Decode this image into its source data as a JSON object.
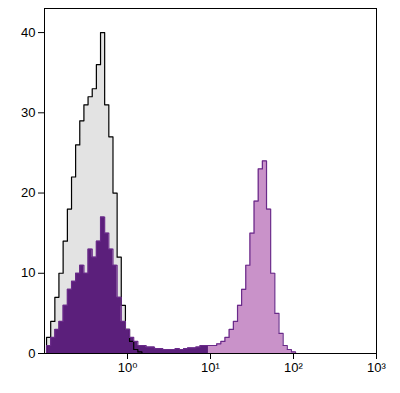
{
  "chart_data": {
    "type": "area",
    "x": [
      0.1,
      0.112,
      0.126,
      0.141,
      0.158,
      0.178,
      0.2,
      0.224,
      0.251,
      0.282,
      0.316,
      0.355,
      0.398,
      0.447,
      0.501,
      0.562,
      0.631,
      0.708,
      0.794,
      0.891,
      1,
      1.12,
      1.26,
      1.41,
      1.58,
      1.78,
      2,
      2.24,
      2.51,
      2.82,
      3.16,
      3.55,
      3.98,
      4.47,
      5.01,
      5.62,
      6.31,
      7.08,
      7.94,
      8.91,
      10,
      11.2,
      12.6,
      14.1,
      15.8,
      17.8,
      20,
      22.4,
      25.1,
      28.2,
      31.6,
      35.5,
      39.8,
      44.7,
      50.1,
      56.2,
      63.1,
      70.8,
      79.4,
      89.1,
      100,
      112,
      126,
      141,
      158
    ],
    "series": [
      {
        "color": "#e3e3e3",
        "values": [
          0,
          2,
          4,
          7,
          10,
          14,
          18,
          22,
          26,
          29,
          31,
          32,
          33,
          36,
          40,
          31,
          27,
          20,
          12,
          6,
          3,
          1.5,
          0.5,
          0.2,
          0,
          0,
          0,
          0,
          0,
          0,
          0,
          0,
          0,
          0,
          0,
          0,
          0,
          0,
          0,
          0,
          0,
          0,
          0,
          0,
          0,
          0,
          0,
          0,
          0,
          0,
          0,
          0,
          0,
          0,
          0,
          0,
          0,
          0,
          0,
          0,
          0,
          0,
          0,
          0,
          0
        ]
      },
      {
        "color": "#5b1f7b",
        "values": [
          0,
          1,
          2,
          3,
          4,
          6,
          8,
          9,
          10,
          11,
          10,
          13,
          12,
          14,
          17,
          15,
          13,
          11,
          7,
          4,
          3,
          2,
          1.5,
          1,
          1,
          0.8,
          0.8,
          0.6,
          0.6,
          0.5,
          0.5,
          0.5,
          0.6,
          0.5,
          0.6,
          0.7,
          0.7,
          0.8,
          1,
          1,
          1,
          null,
          null,
          null,
          null,
          null,
          null,
          null,
          null,
          null,
          null,
          null,
          null,
          null,
          null,
          null,
          null,
          null,
          null,
          null,
          null,
          null,
          null,
          null,
          null
        ]
      },
      {
        "color": "#c992c9",
        "values": [
          null,
          null,
          null,
          null,
          null,
          null,
          null,
          null,
          null,
          null,
          null,
          null,
          null,
          null,
          null,
          null,
          null,
          null,
          null,
          null,
          null,
          null,
          null,
          null,
          null,
          null,
          null,
          null,
          null,
          null,
          null,
          null,
          null,
          null,
          null,
          null,
          null,
          null,
          null,
          null,
          1,
          1,
          1.2,
          1.5,
          2,
          3,
          4,
          6,
          8,
          11,
          15,
          19,
          23,
          24,
          18,
          10,
          5,
          2.5,
          1,
          0.5,
          0.2,
          0,
          0,
          0,
          0
        ]
      }
    ],
    "xlim": [
      0.1,
      1000
    ],
    "ylim": [
      0,
      43
    ],
    "xticks": [
      {
        "value": 1,
        "label": "10⁰"
      },
      {
        "value": 10,
        "label": "10¹"
      },
      {
        "value": 100,
        "label": "10²"
      },
      {
        "value": 1000,
        "label": "10³"
      }
    ],
    "yticks": [
      0,
      10,
      20,
      30,
      40
    ],
    "log": "x",
    "grid": false
  }
}
